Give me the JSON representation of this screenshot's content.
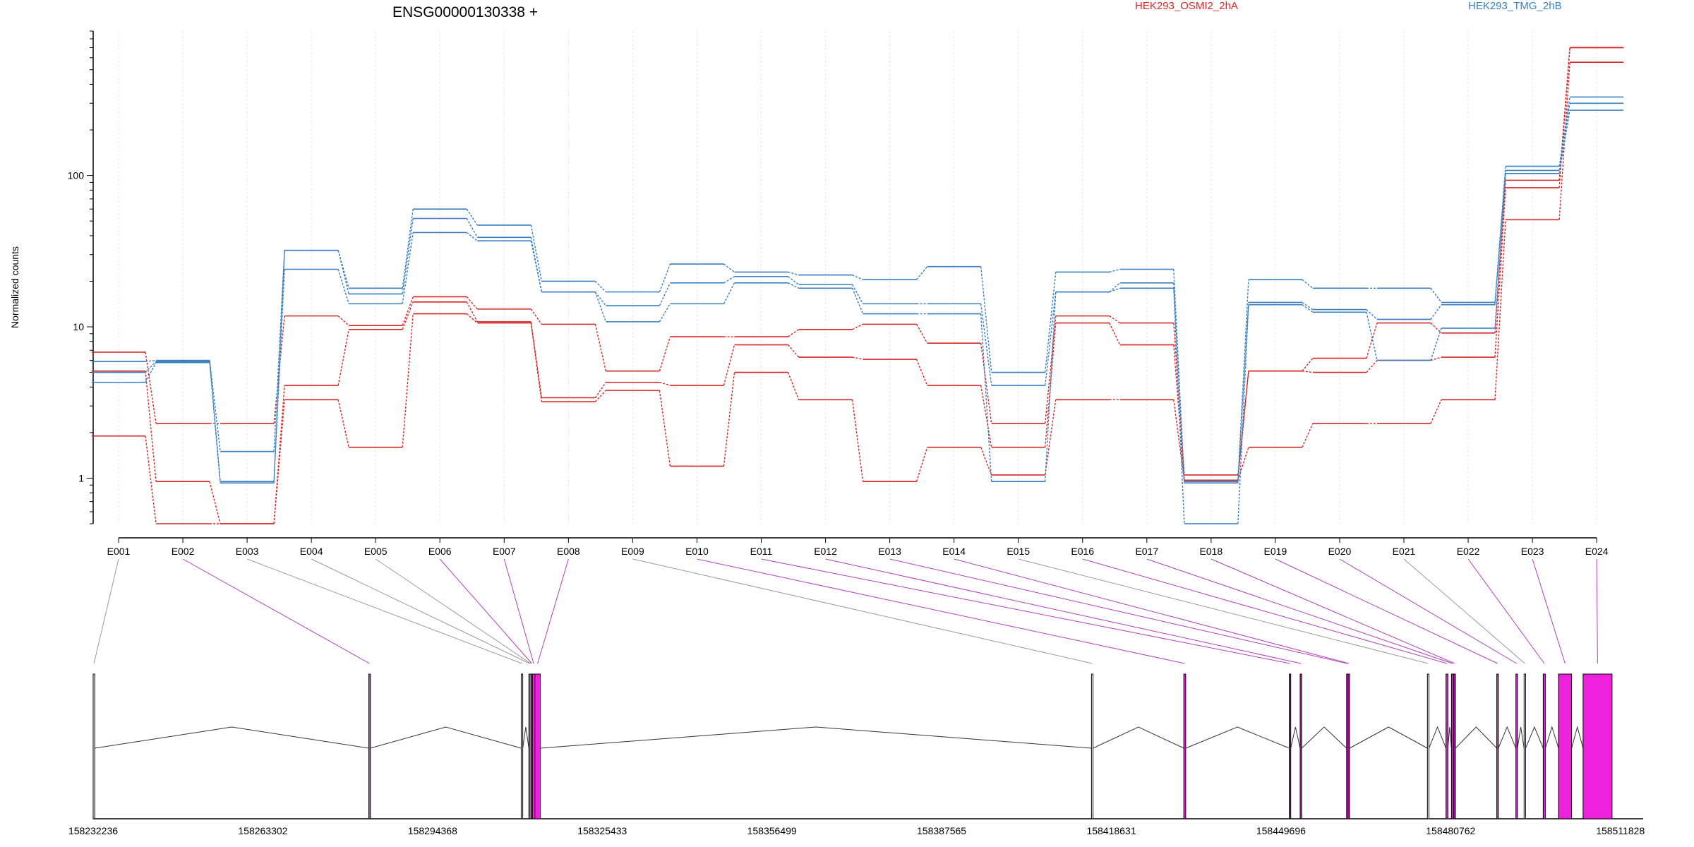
{
  "chart_data": {
    "type": "line",
    "title": "ENSG00000130338 +",
    "ylabel": "Normalized counts",
    "yscale": "log",
    "ylim": [
      0.5,
      900
    ],
    "yticks": [
      "1",
      "10",
      "100"
    ],
    "categories": [
      "E001",
      "E002",
      "E003",
      "E004",
      "E005",
      "E006",
      "E007",
      "E008",
      "E009",
      "E010",
      "E011",
      "E012",
      "E013",
      "E014",
      "E015",
      "E016",
      "E017",
      "E018",
      "E019",
      "E020",
      "E021",
      "E022",
      "E023",
      "E024"
    ],
    "legend": [
      {
        "name": "HEK293_OSMI2_2hA",
        "color": "#d62728"
      },
      {
        "name": "HEK293_TMG_2hB",
        "color": "#3a7fc1"
      }
    ],
    "series": [
      {
        "group": "red",
        "values": [
          6.8,
          2.3,
          2.3,
          11.8,
          10.2,
          15.8,
          13.1,
          10.4,
          5.1,
          8.6,
          8.6,
          9.6,
          10.4,
          7.8,
          2.3,
          11.8,
          10.6,
          1.05,
          5.1,
          6.2,
          10.6,
          9.1,
          93,
          700
        ]
      },
      {
        "group": "red",
        "values": [
          5.1,
          0.95,
          0.5,
          4.1,
          9.6,
          14.6,
          10.8,
          3.4,
          4.3,
          4.1,
          7.6,
          6.3,
          6.1,
          4.1,
          1.6,
          10.6,
          7.6,
          0.97,
          5.1,
          5.0,
          6.0,
          6.3,
          83,
          700
        ]
      },
      {
        "group": "red",
        "values": [
          1.9,
          0.5,
          0.5,
          3.3,
          1.6,
          12.2,
          10.6,
          3.2,
          3.8,
          1.2,
          5.0,
          3.3,
          0.95,
          1.6,
          1.05,
          3.3,
          3.3,
          0.97,
          1.6,
          2.3,
          2.3,
          3.3,
          51,
          560
        ]
      },
      {
        "group": "blue",
        "values": [
          5.9,
          6.0,
          1.5,
          32,
          18,
          60,
          47,
          20,
          17,
          26,
          23,
          22,
          20.5,
          25,
          5.0,
          23,
          24,
          0.95,
          20.5,
          18,
          18,
          14.5,
          115,
          330
        ]
      },
      {
        "group": "blue",
        "values": [
          5.0,
          5.9,
          0.95,
          32,
          16.5,
          52,
          39,
          17,
          13.8,
          19.5,
          21.5,
          19,
          14.2,
          14.2,
          4.1,
          17,
          19.5,
          0.93,
          14.5,
          13,
          11.2,
          14,
          108,
          300
        ]
      },
      {
        "group": "blue",
        "values": [
          4.3,
          5.8,
          0.93,
          24,
          14.2,
          42,
          37,
          17,
          10.8,
          14.2,
          19.5,
          18,
          12.2,
          12.2,
          0.95,
          17,
          18,
          0.5,
          14,
          12.5,
          6.0,
          9.8,
          103,
          270
        ]
      }
    ],
    "x_axis_ticks": [
      "158232236",
      "158263302",
      "158294368",
      "158325433",
      "158356499",
      "158387565",
      "158418631",
      "158449696",
      "158480762",
      "158511828"
    ],
    "genomic_range": [
      158232236,
      158516000
    ],
    "exons": [
      {
        "id": "E001",
        "start": 158232236,
        "end": 158232520
      },
      {
        "id": "E002",
        "start": 158282700,
        "end": 158282980
      },
      {
        "id": "E003",
        "start": 158310600,
        "end": 158310880
      },
      {
        "id": "E004",
        "start": 158312000,
        "end": 158312200
      },
      {
        "id": "E005",
        "start": 158312200,
        "end": 158312400
      },
      {
        "id": "E006",
        "start": 158312400,
        "end": 158312650
      },
      {
        "id": "E007",
        "start": 158312650,
        "end": 158313100
      },
      {
        "id": "E008",
        "start": 158313100,
        "end": 158314100
      },
      {
        "id": "E009",
        "start": 158415000,
        "end": 158415280
      },
      {
        "id": "E010",
        "start": 158431900,
        "end": 158432250
      },
      {
        "id": "E011",
        "start": 158451200,
        "end": 158451480
      },
      {
        "id": "E012",
        "start": 158453200,
        "end": 158453480
      },
      {
        "id": "E013",
        "start": 158461700,
        "end": 158461980
      },
      {
        "id": "E014",
        "start": 158461980,
        "end": 158462260
      },
      {
        "id": "E015",
        "start": 158476500,
        "end": 158476780
      },
      {
        "id": "E016",
        "start": 158479900,
        "end": 158480250
      },
      {
        "id": "E017",
        "start": 158480900,
        "end": 158481250
      },
      {
        "id": "E018",
        "start": 158481350,
        "end": 158481630
      },
      {
        "id": "E019",
        "start": 158489200,
        "end": 158489480
      },
      {
        "id": "E020",
        "start": 158492700,
        "end": 158492980
      },
      {
        "id": "E021",
        "start": 158494200,
        "end": 158494480
      },
      {
        "id": "E022",
        "start": 158497700,
        "end": 158498100
      },
      {
        "id": "E023",
        "start": 158500500,
        "end": 158502900
      },
      {
        "id": "E024",
        "start": 158505000,
        "end": 158510300
      }
    ],
    "highlight_exons": [
      "E002",
      "E006",
      "E007",
      "E008",
      "E010",
      "E011",
      "E012",
      "E013",
      "E014",
      "E016",
      "E017",
      "E018",
      "E019",
      "E020",
      "E022",
      "E023",
      "E024"
    ],
    "highlight_color": "#ee22dd",
    "connector_default_color": "#999999",
    "connector_highlight_color": "#b040b8",
    "grid": true
  }
}
